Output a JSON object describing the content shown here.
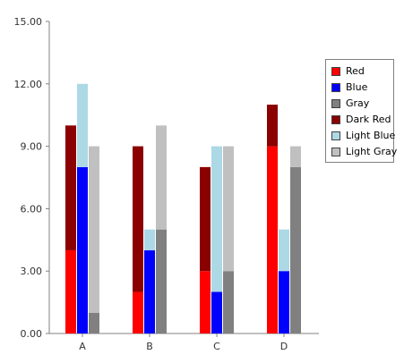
{
  "chart_data": {
    "type": "bar",
    "variant": "stacked groups (Red+Dark Red, Blue+Light Blue, Gray+Light Gray)",
    "categories": [
      "A",
      "B",
      "C",
      "D"
    ],
    "ylim": [
      0,
      15
    ],
    "yticks": [
      "0.00",
      "3.00",
      "6.00",
      "9.00",
      "12.00",
      "15.00"
    ],
    "grid": false,
    "legend": "right",
    "series": [
      {
        "name": "Red",
        "color": "#ff0000",
        "values": [
          4,
          2,
          3,
          9
        ]
      },
      {
        "name": "Blue",
        "color": "#0000ff",
        "values": [
          8,
          4,
          2,
          3
        ]
      },
      {
        "name": "Gray",
        "color": "#808080",
        "values": [
          1,
          5,
          3,
          8
        ]
      },
      {
        "name": "Dark Red",
        "color": "#8b0000",
        "values": [
          6,
          7,
          5,
          2
        ]
      },
      {
        "name": "Light Blue",
        "color": "#add8e6",
        "values": [
          4,
          1,
          7,
          2
        ]
      },
      {
        "name": "Light Gray",
        "color": "#c0c0c0",
        "values": [
          8,
          5,
          6,
          1
        ]
      }
    ],
    "stacks": [
      {
        "base": "Red",
        "top": "Dark Red"
      },
      {
        "base": "Blue",
        "top": "Light Blue"
      },
      {
        "base": "Gray",
        "top": "Light Gray"
      }
    ]
  }
}
